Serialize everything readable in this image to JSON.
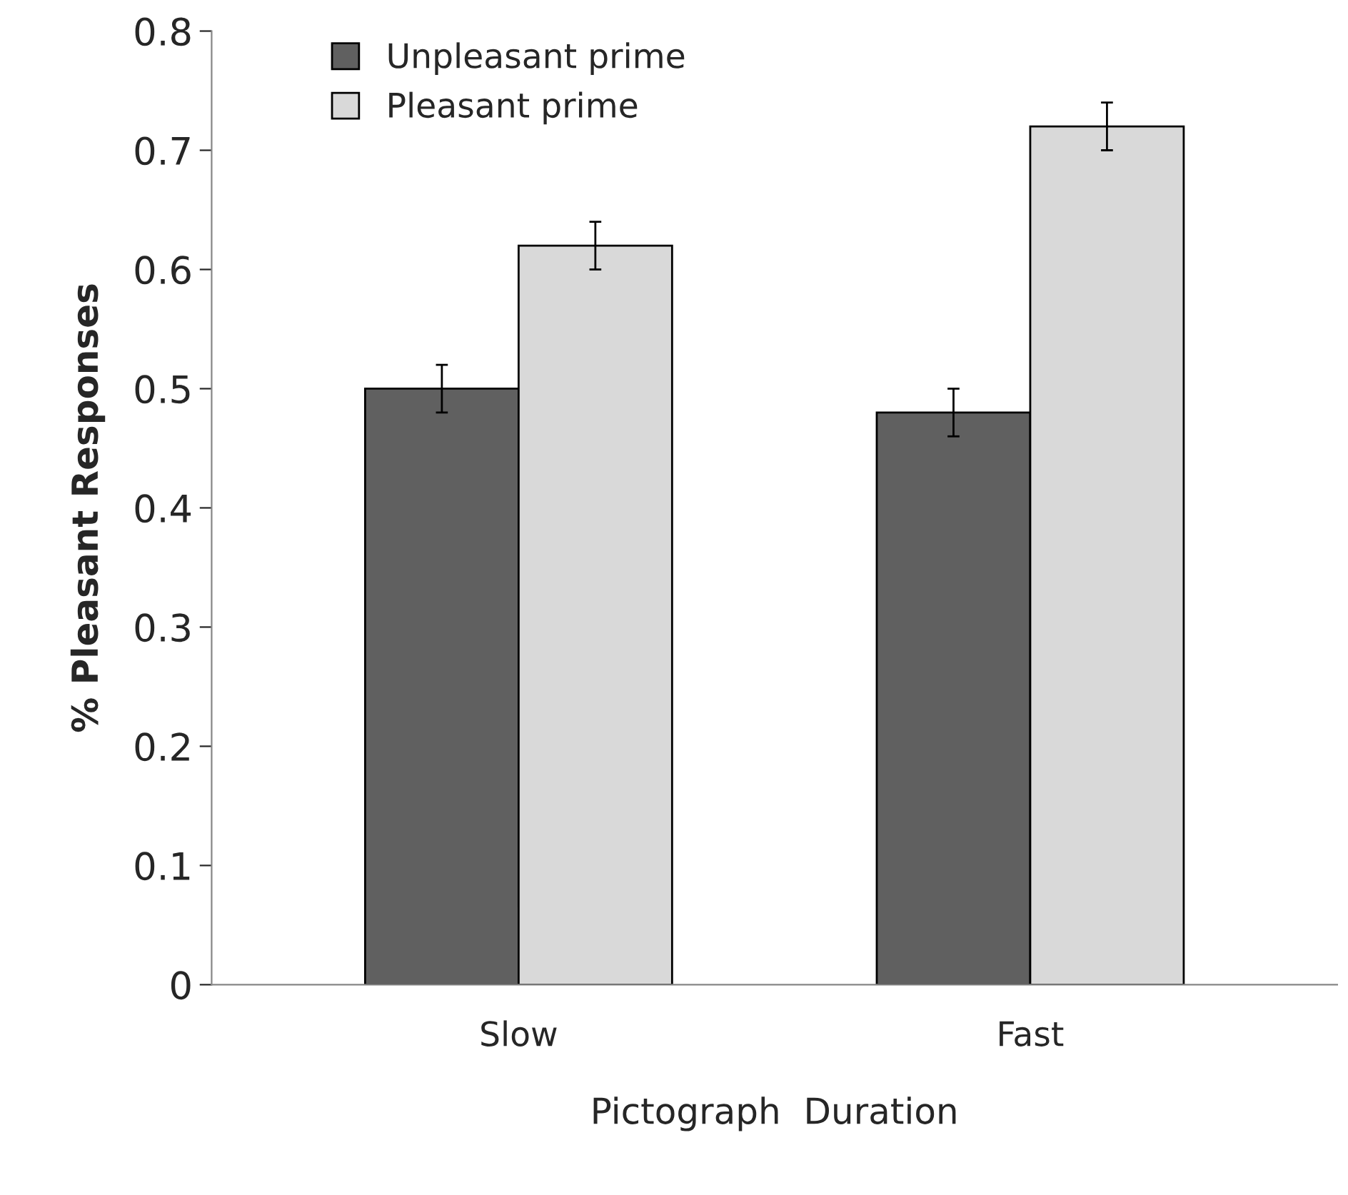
{
  "chart_data": {
    "type": "bar",
    "xlabel": "Pictograph  Duration",
    "ylabel": "% Pleasant Responses",
    "categories": [
      "Slow",
      "Fast"
    ],
    "series": [
      {
        "name": "Unpleasant prime",
        "color": "#606060",
        "values": [
          0.5,
          0.48
        ],
        "errors": [
          0.02,
          0.02
        ]
      },
      {
        "name": "Pleasant prime",
        "color": "#d9d9d9",
        "values": [
          0.62,
          0.72
        ],
        "errors": [
          0.02,
          0.02
        ]
      }
    ],
    "ylim": [
      0,
      0.8
    ],
    "yticks": [
      0,
      0.1,
      0.2,
      0.3,
      0.4,
      0.5,
      0.6,
      0.7,
      0.8
    ],
    "grid": false,
    "legend": "top left"
  }
}
